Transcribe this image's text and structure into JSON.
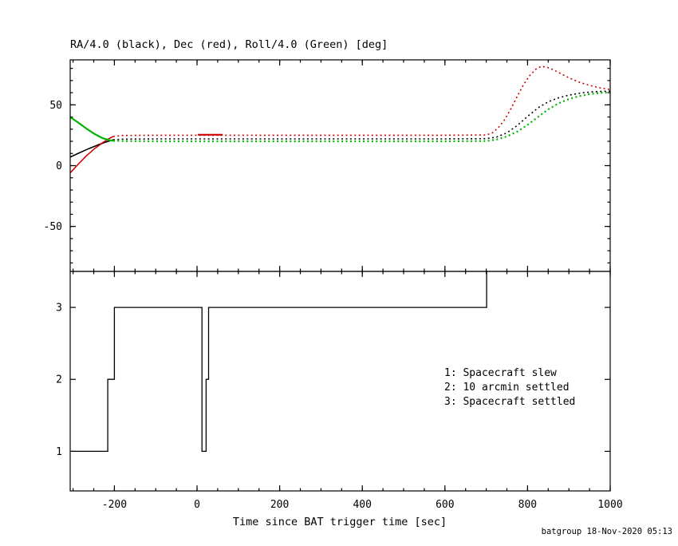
{
  "page": {
    "background": "#ffffff"
  },
  "colors": {
    "axis": "#000000",
    "ra_black": "#000000",
    "dec_red": "#cc0000",
    "roll_green": "#00b400",
    "legend_text": "#992222",
    "credit_text": "#2222cc"
  },
  "credit": "batgroup 18-Nov-2020 05:13",
  "chart_data": [
    {
      "type": "line",
      "title": "RA/4.0 (black), Dec (red), Roll/4.0 (Green) [deg]",
      "xlabel": "",
      "ylabel": "",
      "xlim": [
        -307,
        1000
      ],
      "ylim": [
        -87,
        87
      ],
      "xticks": [
        -200,
        0,
        200,
        400,
        600,
        800,
        1000
      ],
      "yticks": [
        -50,
        0,
        50
      ],
      "minor_x_step": 50,
      "minor_y_step": 10,
      "grid": false,
      "legend_position": "none",
      "series": [
        {
          "name": "RA/4.0 (black)",
          "color": "#000000",
          "width": 1.6,
          "style": "dotted",
          "solid_until": -203,
          "points": [
            [
              -307,
              7
            ],
            [
              -285,
              10.5
            ],
            [
              -262,
              14
            ],
            [
              -240,
              17
            ],
            [
              -220,
              19.5
            ],
            [
              -203,
              21.3
            ],
            [
              -180,
              21.8
            ],
            [
              -100,
              22
            ],
            [
              0,
              22
            ],
            [
              200,
              22
            ],
            [
              400,
              22
            ],
            [
              600,
              22
            ],
            [
              700,
              22.2
            ],
            [
              725,
              23.5
            ],
            [
              750,
              27
            ],
            [
              775,
              33
            ],
            [
              800,
              40.5
            ],
            [
              825,
              47.5
            ],
            [
              850,
              52.5
            ],
            [
              875,
              55.8
            ],
            [
              900,
              58
            ],
            [
              930,
              59.8
            ],
            [
              960,
              60.8
            ],
            [
              1000,
              61.3
            ]
          ]
        },
        {
          "name": "Dec (red)",
          "color": "#cc0000",
          "width": 1.6,
          "style": "dotted",
          "solid_until": -203,
          "points": [
            [
              -307,
              -6
            ],
            [
              -288,
              1
            ],
            [
              -268,
              8
            ],
            [
              -248,
              14
            ],
            [
              -228,
              19
            ],
            [
              -210,
              22.8
            ],
            [
              -203,
              24
            ],
            [
              -180,
              24.8
            ],
            [
              -100,
              25
            ],
            [
              0,
              25
            ],
            [
              200,
              25
            ],
            [
              400,
              25
            ],
            [
              600,
              25
            ],
            [
              700,
              25.2
            ],
            [
              715,
              27
            ],
            [
              730,
              31.5
            ],
            [
              745,
              38
            ],
            [
              760,
              47
            ],
            [
              775,
              57
            ],
            [
              790,
              66.5
            ],
            [
              805,
              74
            ],
            [
              820,
              79.3
            ],
            [
              832,
              81.5
            ],
            [
              845,
              81.2
            ],
            [
              860,
              79.2
            ],
            [
              880,
              75.8
            ],
            [
              900,
              72.3
            ],
            [
              925,
              68.6
            ],
            [
              950,
              66
            ],
            [
              975,
              64
            ],
            [
              1000,
              62.6
            ]
          ]
        },
        {
          "name": "Roll/4.0 (Green)",
          "color": "#00b400",
          "width": 2.2,
          "style": "dotted",
          "solid_until": -203,
          "points": [
            [
              -307,
              40
            ],
            [
              -288,
              35.5
            ],
            [
              -268,
              30.5
            ],
            [
              -248,
              26
            ],
            [
              -228,
              22.5
            ],
            [
              -210,
              20.8
            ],
            [
              -203,
              20.4
            ],
            [
              -180,
              20.2
            ],
            [
              -100,
              20
            ],
            [
              0,
              20
            ],
            [
              200,
              20
            ],
            [
              400,
              20
            ],
            [
              600,
              20
            ],
            [
              700,
              20.2
            ],
            [
              725,
              21.5
            ],
            [
              750,
              24
            ],
            [
              775,
              28
            ],
            [
              800,
              33.5
            ],
            [
              825,
              40
            ],
            [
              850,
              46.3
            ],
            [
              875,
              51.3
            ],
            [
              900,
              54.8
            ],
            [
              925,
              57.2
            ],
            [
              950,
              58.8
            ],
            [
              975,
              59.8
            ],
            [
              1000,
              60.3
            ]
          ]
        }
      ],
      "overlays": [
        {
          "name": "dec-settled-solid-segment",
          "color": "#cc0000",
          "width": 2.2,
          "points": [
            [
              2,
              25.4
            ],
            [
              62,
              25.4
            ]
          ]
        }
      ]
    },
    {
      "type": "line",
      "title": "",
      "xlabel": "Time since BAT trigger time [sec]",
      "ylabel": "",
      "xlim": [
        -307,
        1000
      ],
      "ylim": [
        0.45,
        3.5
      ],
      "xticks": [
        -200,
        0,
        200,
        400,
        600,
        800,
        1000
      ],
      "yticks": [
        1,
        2,
        3
      ],
      "minor_x_step": 50,
      "grid": false,
      "legend": [
        "1: Spacecraft slew",
        "2: 10 arcmin settled",
        "3: Spacecraft settled"
      ],
      "series": [
        {
          "name": "settle-state-flag",
          "color": "#000000",
          "width": 1.3,
          "style": "solid",
          "points": [
            [
              -307,
              1
            ],
            [
              -216,
              1
            ],
            [
              -216,
              2
            ],
            [
              -200,
              2
            ],
            [
              -200,
              3
            ],
            [
              12,
              3
            ],
            [
              12,
              1
            ],
            [
              22,
              1
            ],
            [
              22,
              2
            ],
            [
              28,
              2
            ],
            [
              28,
              3
            ],
            [
              701,
              3
            ],
            [
              701,
              3.6
            ],
            [
              1000,
              3.6
            ]
          ]
        }
      ]
    }
  ]
}
